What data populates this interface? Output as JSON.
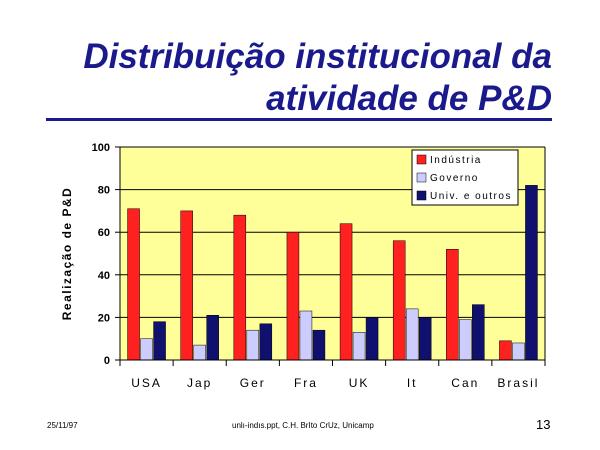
{
  "slide": {
    "title_line1": "Distribuição institucional da",
    "title_line2": "atividade de P&D",
    "footer_date": "25/11/97",
    "footer_source": "unlı-indıs.ppt, C.H. BrIto CrUz, Unicamp",
    "page_number": "13"
  },
  "chart_data": {
    "type": "bar",
    "categories": [
      "USA",
      "Jap",
      "Ger",
      "Fra",
      "UK",
      "It",
      "Can",
      "Brasil"
    ],
    "series": [
      {
        "name": "Indústria",
        "color": "#ff2020",
        "values": [
          71,
          70,
          68,
          60,
          64,
          56,
          52,
          9
        ]
      },
      {
        "name": "Governo",
        "color": "#ccccff",
        "values": [
          10,
          7,
          14,
          23,
          13,
          24,
          19,
          8
        ]
      },
      {
        "name": "Univ. e outros",
        "color": "#10106e",
        "values": [
          18,
          21,
          17,
          14,
          20,
          20,
          26,
          82
        ]
      }
    ],
    "ylabel": "Realização de P&D",
    "ylim": [
      0,
      100
    ],
    "yticks": [
      0,
      20,
      40,
      60,
      80,
      100
    ],
    "grid": true,
    "plot_background": "#ffff99",
    "legend_position": "top-right"
  }
}
